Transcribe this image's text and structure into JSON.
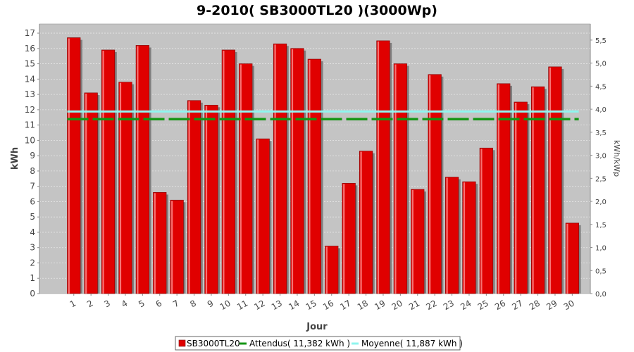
{
  "chart_data": {
    "type": "bar",
    "title": "9-2010( SB3000TL20 )(3000Wp)",
    "xlabel": "Jour",
    "ylabel": "kWh",
    "ylabel_right": "kWh/kWp",
    "ylim": [
      0,
      17.6
    ],
    "ylim_right": [
      0,
      5.85
    ],
    "y_ticks": [
      "0",
      "1",
      "2",
      "3",
      "4",
      "5",
      "6",
      "7",
      "8",
      "9",
      "10",
      "11",
      "12",
      "13",
      "14",
      "15",
      "16",
      "17"
    ],
    "y_right_ticks": [
      "0,0",
      "0,5",
      "1,0",
      "1,5",
      "2,0",
      "2,5",
      "3,0",
      "3,5",
      "4,0",
      "4,5",
      "5,0",
      "5,5"
    ],
    "grid": true,
    "legend_position": "bottom",
    "categories": [
      "1",
      "2",
      "3",
      "4",
      "5",
      "6",
      "7",
      "8",
      "9",
      "10",
      "11",
      "12",
      "13",
      "14",
      "15",
      "16",
      "17",
      "18",
      "19",
      "20",
      "21",
      "22",
      "23",
      "24",
      "25",
      "26",
      "27",
      "28",
      "29",
      "30"
    ],
    "series": [
      {
        "name": "SB3000TL20",
        "kind": "bar",
        "color": "#e00000",
        "values": [
          16.7,
          13.1,
          15.9,
          13.8,
          16.2,
          6.6,
          6.1,
          12.6,
          12.3,
          15.9,
          15.0,
          10.1,
          16.3,
          16.0,
          15.3,
          3.1,
          7.2,
          9.3,
          16.5,
          15.0,
          6.8,
          14.3,
          7.6,
          7.3,
          9.5,
          13.7,
          12.5,
          13.5,
          14.8,
          4.6
        ]
      },
      {
        "name": "Attendus( 11,382 kWh )",
        "kind": "line",
        "style": "dashed",
        "color": "#159615",
        "value": 11.382
      },
      {
        "name": "Moyenne( 11,887 kWh )",
        "kind": "line",
        "style": "solid",
        "color": "#8ff5ee",
        "value": 11.887
      }
    ],
    "legend": [
      "SB3000TL20",
      "Attendus( 11,382 kWh )",
      "Moyenne( 11,887 kWh )"
    ]
  }
}
